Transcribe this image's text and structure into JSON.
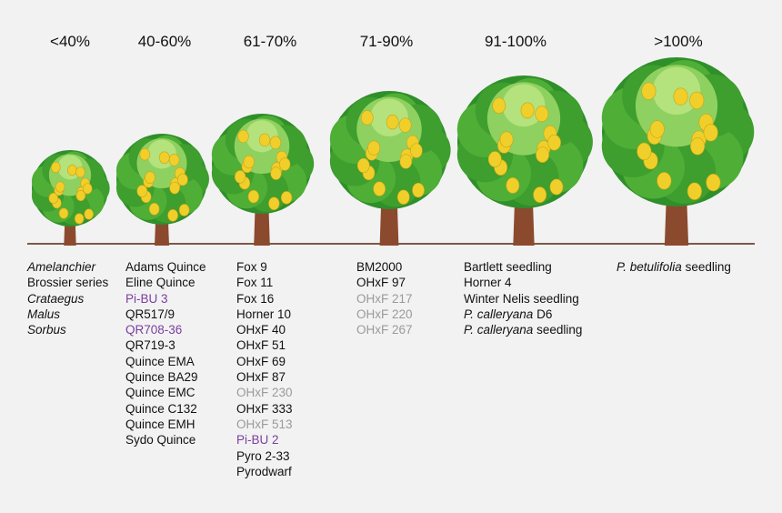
{
  "columns": [
    {
      "heading": "<40%",
      "items": [
        {
          "text": "Amelanchier",
          "italic": true
        },
        {
          "text": "Brossier series"
        },
        {
          "text": "Crataegus",
          "italic": true
        },
        {
          "text": "Malus",
          "italic": true
        },
        {
          "text": "Sorbus",
          "italic": true
        }
      ]
    },
    {
      "heading": "40-60%",
      "items": [
        {
          "text": "Adams Quince"
        },
        {
          "text": "Eline Quince"
        },
        {
          "text": "Pi-BU 3",
          "color": "#7b3f9e"
        },
        {
          "text": "QR517/9"
        },
        {
          "text": "QR708-36",
          "color": "#7b3f9e"
        },
        {
          "text": "QR719-3"
        },
        {
          "text": "Quince EMA"
        },
        {
          "text": "Quince BA29"
        },
        {
          "text": "Quince EMC"
        },
        {
          "text": "Quince C132"
        },
        {
          "text": "Quince EMH"
        },
        {
          "text": "Sydo Quince"
        }
      ]
    },
    {
      "heading": "61-70%",
      "items": [
        {
          "text": "Fox 9"
        },
        {
          "text": "Fox 11"
        },
        {
          "text": "Fox 16"
        },
        {
          "text": "Horner 10"
        },
        {
          "text": "OHxF 40"
        },
        {
          "text": "OHxF 51"
        },
        {
          "text": "OHxF 69"
        },
        {
          "text": "OHxF 87"
        },
        {
          "text": "OHxF 230",
          "color": "#9a9a9a"
        },
        {
          "text": "OHxF 333"
        },
        {
          "text": "OHxF 513",
          "color": "#9a9a9a"
        },
        {
          "text": "Pi-BU 2",
          "color": "#7b3f9e"
        },
        {
          "text": "Pyro 2-33"
        },
        {
          "text": "Pyrodwarf"
        }
      ]
    },
    {
      "heading": "71-90%",
      "items": [
        {
          "text": "BM2000"
        },
        {
          "text": "OHxF 97"
        },
        {
          "text": "OHxF 217",
          "color": "#9a9a9a"
        },
        {
          "text": "OHxF 220",
          "color": "#9a9a9a"
        },
        {
          "text": "OHxF 267",
          "color": "#9a9a9a"
        }
      ]
    },
    {
      "heading": "91-100%",
      "items": [
        {
          "text": "Bartlett seedling"
        },
        {
          "text": "Horner 4"
        },
        {
          "text": "Winter Nelis seedling"
        },
        {
          "italic": "P. calleryana",
          "text": "D6"
        },
        {
          "italic": "P. calleryana",
          "text": "seedling"
        }
      ]
    },
    {
      "heading": ">100%",
      "items": [
        {
          "italic": "P. betulifolia",
          "text": "seedling"
        }
      ]
    }
  ]
}
